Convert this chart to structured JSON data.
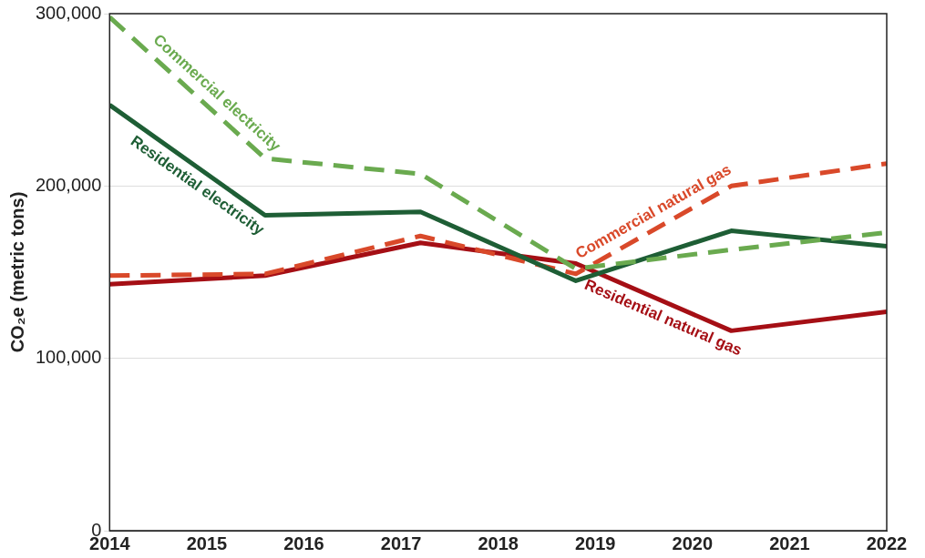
{
  "chart_data": {
    "type": "line",
    "ylabel": "CO₂e (metric tons)",
    "xlim": [
      2014,
      2022
    ],
    "xticks": [
      2014,
      2015,
      2016,
      2017,
      2018,
      2019,
      2020,
      2021,
      2022
    ],
    "ylim": [
      0,
      300000
    ],
    "yticks": [
      {
        "value": 0,
        "label": "0"
      },
      {
        "value": 100000,
        "label": "100,000"
      },
      {
        "value": 200000,
        "label": "200,000"
      },
      {
        "value": 300000,
        "label": "300,000"
      }
    ],
    "grid": "y",
    "legend": false,
    "marker": "none",
    "x": [
      2014,
      2015.6,
      2017.2,
      2018.8,
      2020.4,
      2022
    ],
    "series": [
      {
        "name": "Commercial electricity",
        "color": "#6aaa4f",
        "line_style": "dashed",
        "values": [
          298000,
          216000,
          207000,
          152000,
          163000,
          173000
        ]
      },
      {
        "name": "Residential electricity",
        "color": "#1e5e35",
        "line_style": "solid",
        "values": [
          247000,
          183000,
          185000,
          145000,
          174000,
          165000
        ]
      },
      {
        "name": "Commercial natural gas",
        "color": "#d9492a",
        "line_style": "dashed",
        "values": [
          148000,
          149000,
          171000,
          149000,
          200000,
          213000
        ]
      },
      {
        "name": "Residential natural gas",
        "color": "#a50f15",
        "line_style": "solid",
        "values": [
          143000,
          148000,
          167000,
          155000,
          116000,
          127000
        ]
      }
    ]
  }
}
